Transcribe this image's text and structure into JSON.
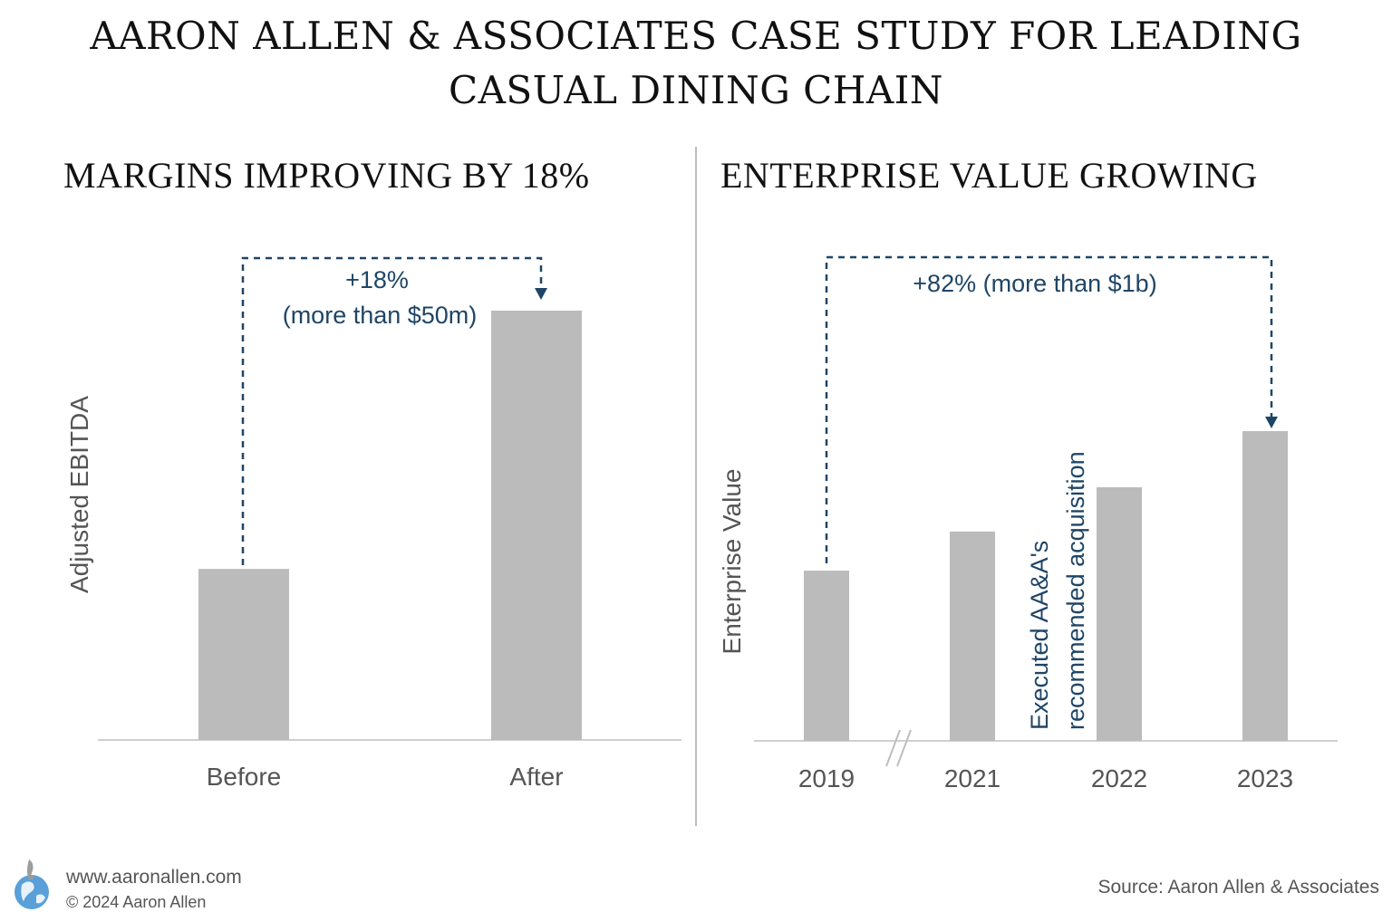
{
  "header": {
    "title_line1": "AARON ALLEN & ASSOCIATES CASE STUDY FOR LEADING",
    "title_line2": "CASUAL DINING CHAIN"
  },
  "colors": {
    "bar": "#bbbbbb",
    "accent": "#1f4566",
    "text": "#555555"
  },
  "chart_data": [
    {
      "type": "bar",
      "title": "MARGINS IMPROVING BY 18%",
      "ylabel": "Adjusted EBITDA",
      "categories": [
        "Before",
        "After"
      ],
      "values": [
        100,
        251
      ],
      "annotation_line1": "+18%",
      "annotation_line2": "(more than $50m)"
    },
    {
      "type": "bar",
      "title": "ENTERPRISE VALUE GROWING",
      "ylabel": "Enterprise Value",
      "categories": [
        "2019",
        "2021",
        "2022",
        "2023"
      ],
      "values": [
        100,
        123,
        149,
        182
      ],
      "annotation": "+82%  (more than $1b)",
      "bar_note_line1": "Executed AA&A's",
      "bar_note_line2": "recommended acquisition"
    }
  ],
  "footer": {
    "url": "www.aaronallen.com",
    "copyright": "© 2024 Aaron Allen",
    "source": "Source: Aaron Allen & Associates",
    "logo_icon": "globe-logo-icon"
  }
}
